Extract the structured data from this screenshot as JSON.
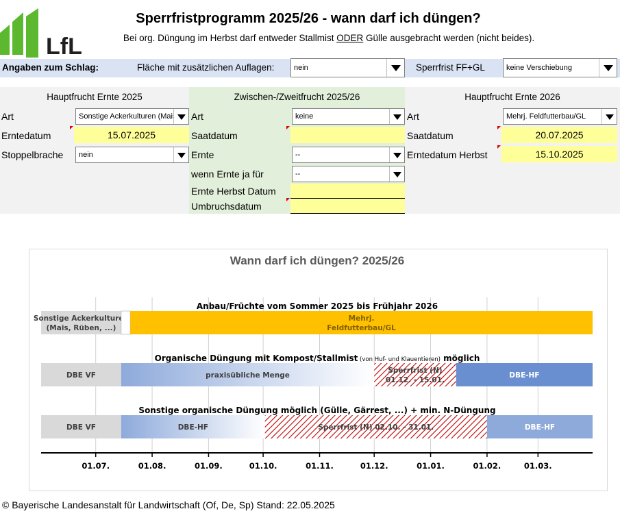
{
  "header": {
    "logo_text": "LfL",
    "title": "Sperrfristprogramm 2025/26 - wann darf ich düngen?",
    "subtitle_pre": "Bei org. Düngung im Herbst darf entweder Stallmist ",
    "subtitle_emph": "ODER",
    "subtitle_post": " Gülle ausgebracht werden (nicht beides)."
  },
  "band": {
    "title": "Angaben zum Schlag:",
    "flaeche_label": "Fläche mit zusätzlichen Auflagen:",
    "flaeche_value": "nein",
    "sperrfrist_label": "Sperrfrist FF+GL",
    "sperrfrist_value": "keine Verschiebung"
  },
  "left_col": {
    "heading": "Hauptfrucht Ernte 2025",
    "art_label": "Art",
    "art_value": "Sonstige Ackerkulturen (Mais, Rüben, ...)",
    "erntedatum_label": "Erntedatum",
    "erntedatum_value": "15.07.2025",
    "stoppel_label": "Stoppelbrache",
    "stoppel_value": "nein"
  },
  "mid_col": {
    "heading": "Zwischen-/Zweitfrucht 2025/26",
    "art_label": "Art",
    "art_value": "keine",
    "saatdatum_label": "Saatdatum",
    "saatdatum_value": "",
    "ernte_label": "Ernte",
    "ernte_value": "--",
    "wenn_label": "wenn Ernte ja für",
    "wenn_value": "--",
    "ernte_herbst_label": "Ernte Herbst Datum",
    "ernte_herbst_value": "",
    "umbruch_label": "Umbruchsdatum",
    "umbruch_value": ""
  },
  "right_col": {
    "heading": "Hauptfrucht Ernte 2026",
    "art_label": "Art",
    "art_value": "Mehrj. Feldfutterbau/GL",
    "saatdatum_label": "Saatdatum",
    "saatdatum_value": "20.07.2025",
    "ernte_herbst_label": "Erntedatum Herbst",
    "ernte_herbst_value": "15.10.2025"
  },
  "chart_data": {
    "type": "bar",
    "title": "Wann darf ich düngen? 2025/26",
    "x_start": "2025-06-01",
    "x_end": "2026-03-31",
    "ticks": [
      "01.07.",
      "01.08.",
      "01.09.",
      "01.10.",
      "01.11.",
      "01.12.",
      "01.01.",
      "01.02.",
      "01.03."
    ],
    "tick_dates": [
      "2025-07-01",
      "2025-08-01",
      "2025-09-01",
      "2025-10-01",
      "2025-11-01",
      "2025-12-01",
      "2026-01-01",
      "2026-02-01",
      "2026-03-01"
    ],
    "rows": [
      {
        "heading": "Anbau/Früchte vom Sommer 2025 bis Frühjahr 2026",
        "segments": [
          {
            "start": "2025-06-01",
            "end": "2025-07-15",
            "label1": "Sonstige Ackerkulturen",
            "label2": "(Mais, Rüben, ...)",
            "style": "gray"
          },
          {
            "start": "2025-07-15",
            "end": "2025-07-20",
            "label1": "",
            "label2": "",
            "style": "white"
          },
          {
            "start": "2025-07-20",
            "end": "2026-03-31",
            "label1": "Mehrj.",
            "label2": "Feldfutterbau/GL",
            "style": "orange"
          }
        ]
      },
      {
        "heading_main": "Organische Düngung mit Kompost/Stallmist",
        "heading_small": " (von Huf- und Klauentieren)",
        "heading_end": " möglich",
        "segments": [
          {
            "start": "2025-06-01",
            "end": "2025-07-15",
            "label1": "DBE VF",
            "label2": "",
            "style": "gray"
          },
          {
            "start": "2025-07-15",
            "end": "2025-12-01",
            "label1": "praxisübliche Menge",
            "label2": "",
            "style": "blue-fade"
          },
          {
            "start": "2025-12-01",
            "end": "2026-01-15",
            "label1": "Sperrfrist (N)",
            "label2": "01.12. - 15.01.",
            "style": "hatch"
          },
          {
            "start": "2026-01-15",
            "end": "2026-03-31",
            "label1": "DBE-HF",
            "label2": "",
            "style": "blue-dark"
          }
        ]
      },
      {
        "heading": "Sonstige organische Düngung möglich (Gülle, Gärrest, ...) + min. N-Düngung",
        "segments": [
          {
            "start": "2025-06-01",
            "end": "2025-07-15",
            "label1": "DBE VF",
            "label2": "",
            "style": "gray"
          },
          {
            "start": "2025-07-15",
            "end": "2025-10-02",
            "label1": "DBE-HF",
            "label2": "",
            "style": "blue-fade"
          },
          {
            "start": "2025-10-02",
            "end": "2026-02-01",
            "label1": "Sperrfrist (N) 02.10. - 31.01.",
            "label2": "",
            "style": "hatch"
          },
          {
            "start": "2026-02-01",
            "end": "2026-03-31",
            "label1": "DBE-HF",
            "label2": "",
            "style": "blue-mid"
          }
        ]
      }
    ]
  },
  "colors": {
    "band": "#dae3f3",
    "input_yellow": "#ffff99",
    "mid_column": "#e2efda",
    "orange": "#ffc000",
    "blue_dark": "#6a8fd0",
    "blue_mid": "#8eaadb",
    "hatch_red": "#c00000",
    "logo_green": "#5cb82e"
  },
  "footer": {
    "text": "© Bayerische Landesanstalt für Landwirtschaft (Of, De, Sp) Stand: 22.05.2025"
  }
}
